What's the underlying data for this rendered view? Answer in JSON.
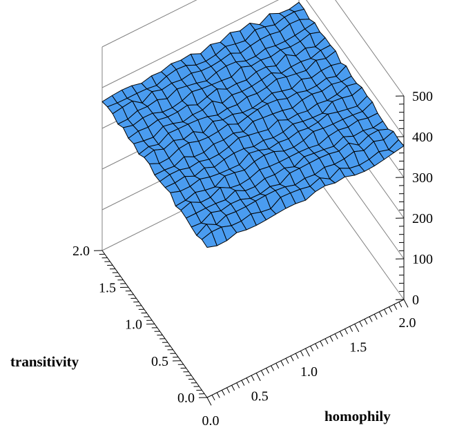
{
  "chart_data": {
    "type": "surface3d",
    "title": "",
    "xlabel": "homophily",
    "ylabel": "transitivity",
    "zlabel": "",
    "xlim": [
      0.0,
      2.0
    ],
    "ylim": [
      0.0,
      2.0
    ],
    "zlim": [
      0,
      500
    ],
    "x_ticks": [
      "0.0",
      "0.5",
      "1.0",
      "1.5",
      "2.0"
    ],
    "y_ticks": [
      "0.0",
      "0.5",
      "1.0",
      "1.5",
      "2.0"
    ],
    "z_ticks": [
      "0",
      "100",
      "200",
      "300",
      "400",
      "500"
    ],
    "grid": "20x20",
    "surface_mean": 370,
    "surface_range": [
      355,
      385
    ],
    "surface_color": "#4a9cf0"
  }
}
